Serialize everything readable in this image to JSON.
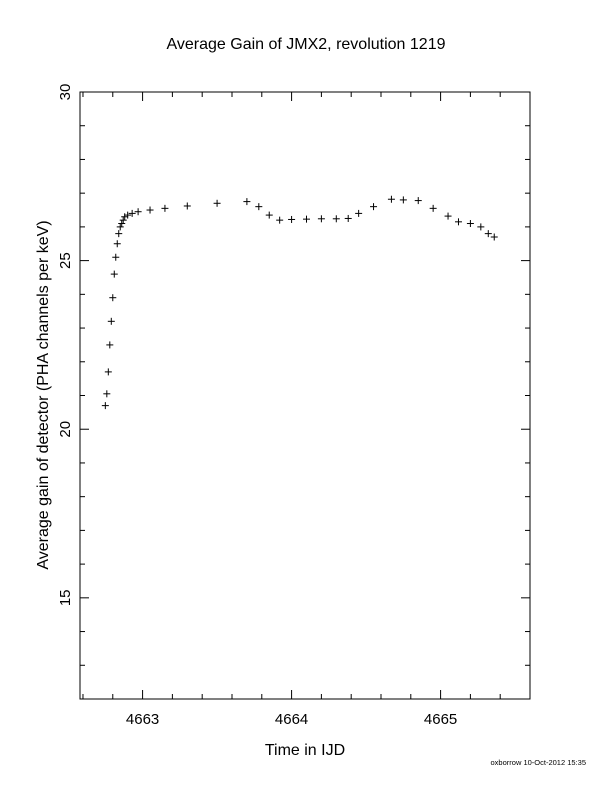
{
  "chart_data": {
    "type": "scatter",
    "title": "Average Gain of JMX2, revolution 1219",
    "xlabel": "Time in IJD",
    "ylabel": "Average gain of detector (PHA channels per keV)",
    "xlim": [
      4662.58,
      4665.6
    ],
    "ylim": [
      12,
      30
    ],
    "xticks": [
      4663,
      4664,
      4665
    ],
    "xtick_labels": [
      "4663",
      "4664",
      "4665"
    ],
    "yticks": [
      15,
      20,
      25,
      30
    ],
    "ytick_labels": [
      "15",
      "20",
      "25",
      "30"
    ],
    "marker": "+",
    "grid": false,
    "series": [
      {
        "name": "",
        "x": [
          4662.75,
          4662.76,
          4662.77,
          4662.78,
          4662.79,
          4662.8,
          4662.81,
          4662.82,
          4662.83,
          4662.84,
          4662.85,
          4662.86,
          4662.87,
          4662.88,
          4662.9,
          4662.93,
          4662.97,
          4663.05,
          4663.15,
          4663.3,
          4663.5,
          4663.7,
          4663.78,
          4663.85,
          4663.92,
          4664.0,
          4664.1,
          4664.2,
          4664.3,
          4664.38,
          4664.45,
          4664.55,
          4664.67,
          4664.75,
          4664.85,
          4664.95,
          4665.05,
          4665.12,
          4665.2,
          4665.27,
          4665.32,
          4665.36
        ],
        "y": [
          20.7,
          21.05,
          21.7,
          22.5,
          23.2,
          23.9,
          24.6,
          25.1,
          25.5,
          25.8,
          26.0,
          26.1,
          26.2,
          26.3,
          26.35,
          26.4,
          26.45,
          26.5,
          26.55,
          26.62,
          26.7,
          26.75,
          26.6,
          26.35,
          26.2,
          26.22,
          26.23,
          26.24,
          26.24,
          26.25,
          26.4,
          26.6,
          26.82,
          26.8,
          26.78,
          26.55,
          26.32,
          26.15,
          26.1,
          26.0,
          25.8,
          25.7
        ]
      }
    ]
  },
  "footer": {
    "note": "oxborrow 10-Oct-2012 15:35"
  }
}
